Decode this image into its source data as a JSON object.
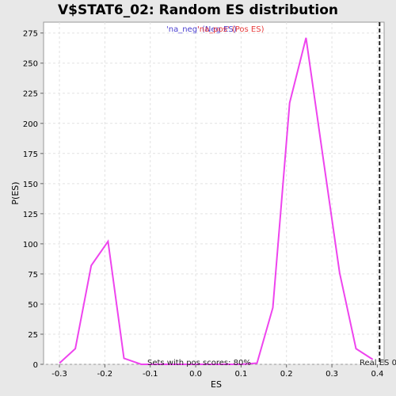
{
  "chart_data": {
    "type": "line",
    "title": "V$STAT6_02: Random ES distribution",
    "xlabel": "ES",
    "ylabel": "P(ES)",
    "xlim": [
      -0.335,
      0.415
    ],
    "ylim": [
      0,
      284
    ],
    "x_ticks": [
      -0.3,
      -0.2,
      -0.1,
      0.0,
      0.1,
      0.2,
      0.3,
      0.4
    ],
    "x_tick_labels": [
      "-0.3",
      "-0.2",
      "-0.1",
      "0.0",
      "0.1",
      "0.2",
      "0.3",
      "0.4"
    ],
    "y_ticks": [
      0,
      25,
      50,
      75,
      100,
      125,
      150,
      175,
      200,
      225,
      250,
      275
    ],
    "y_tick_labels": [
      "0",
      "25",
      "50",
      "75",
      "100",
      "125",
      "150",
      "175",
      "200",
      "225",
      "250",
      "275"
    ],
    "grid": true,
    "legend": {
      "placement": "top-center",
      "neg_label": "'na_neg' (Neg ES)",
      "pos_label": "'na_pos' (Pos ES)"
    },
    "series": [
      {
        "name": "'na_pos' (Pos ES)",
        "color": "#ee44ee",
        "x": [
          -0.3,
          -0.265,
          -0.23,
          -0.193,
          -0.158,
          -0.12,
          -0.085,
          0.1,
          0.135,
          0.17,
          0.207,
          0.243,
          0.28,
          0.317,
          0.353,
          0.39
        ],
        "y": [
          1,
          13,
          82,
          102,
          5,
          0,
          0,
          0,
          1,
          47,
          217,
          271,
          173,
          76,
          13,
          4
        ]
      }
    ],
    "real_es": {
      "x": 0.405,
      "label": "Real ES 0"
    },
    "annotation": "Sets with pos scores: 80%"
  }
}
